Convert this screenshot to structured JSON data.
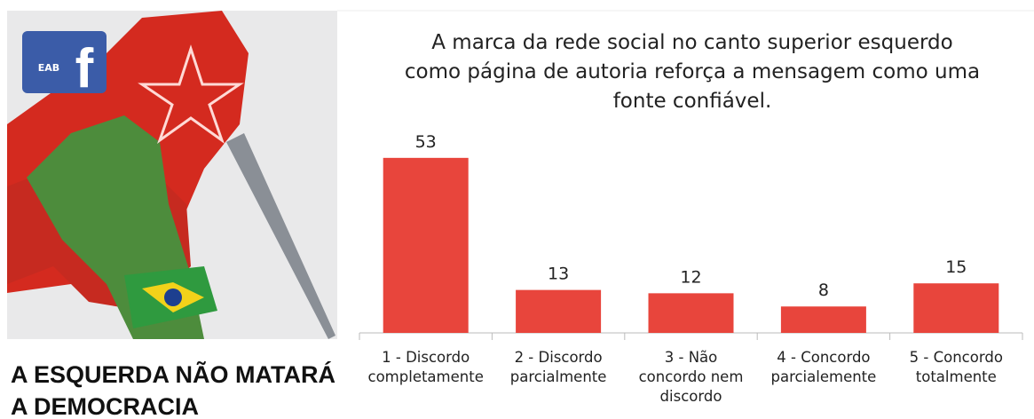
{
  "image": {
    "logo_text": "EAB",
    "logo_letter": "f",
    "caption": "A ESQUERDA NÃO MATARÁ A DEMOCRACIA"
  },
  "chart_data": {
    "type": "bar",
    "title": "A marca da rede social no canto superior esquerdo como página de autoria reforça a mensagem como uma fonte confiável.",
    "categories": [
      "1 - Discordo completamente",
      "2 - Discordo parcialmente",
      "3 - Não concordo nem discordo",
      "4 - Concordo parcialemente",
      "5 - Concordo totalmente"
    ],
    "values": [
      53,
      13,
      12,
      8,
      15
    ],
    "color": "#e8453c"
  }
}
